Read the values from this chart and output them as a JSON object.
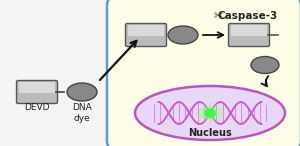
{
  "bg_color": "#f5f5f5",
  "cell_bg": "#fefee8",
  "cell_border": "#5b9bd5",
  "nucleus_bg": "#e8d8f8",
  "nucleus_border": "#bb55bb",
  "dna_color": "#cc55cc",
  "rect_face": "#bbbbbb",
  "rect_edge": "#555555",
  "oval_face": "#888888",
  "oval_edge": "#444444",
  "arrow_color": "#111111",
  "green_color": "#33ff44",
  "green_glow": "#99ff66",
  "title": "Caspase-3",
  "label_devd": "DEVD",
  "label_dna": "DNA\ndye",
  "label_nucleus": "Nucleus"
}
